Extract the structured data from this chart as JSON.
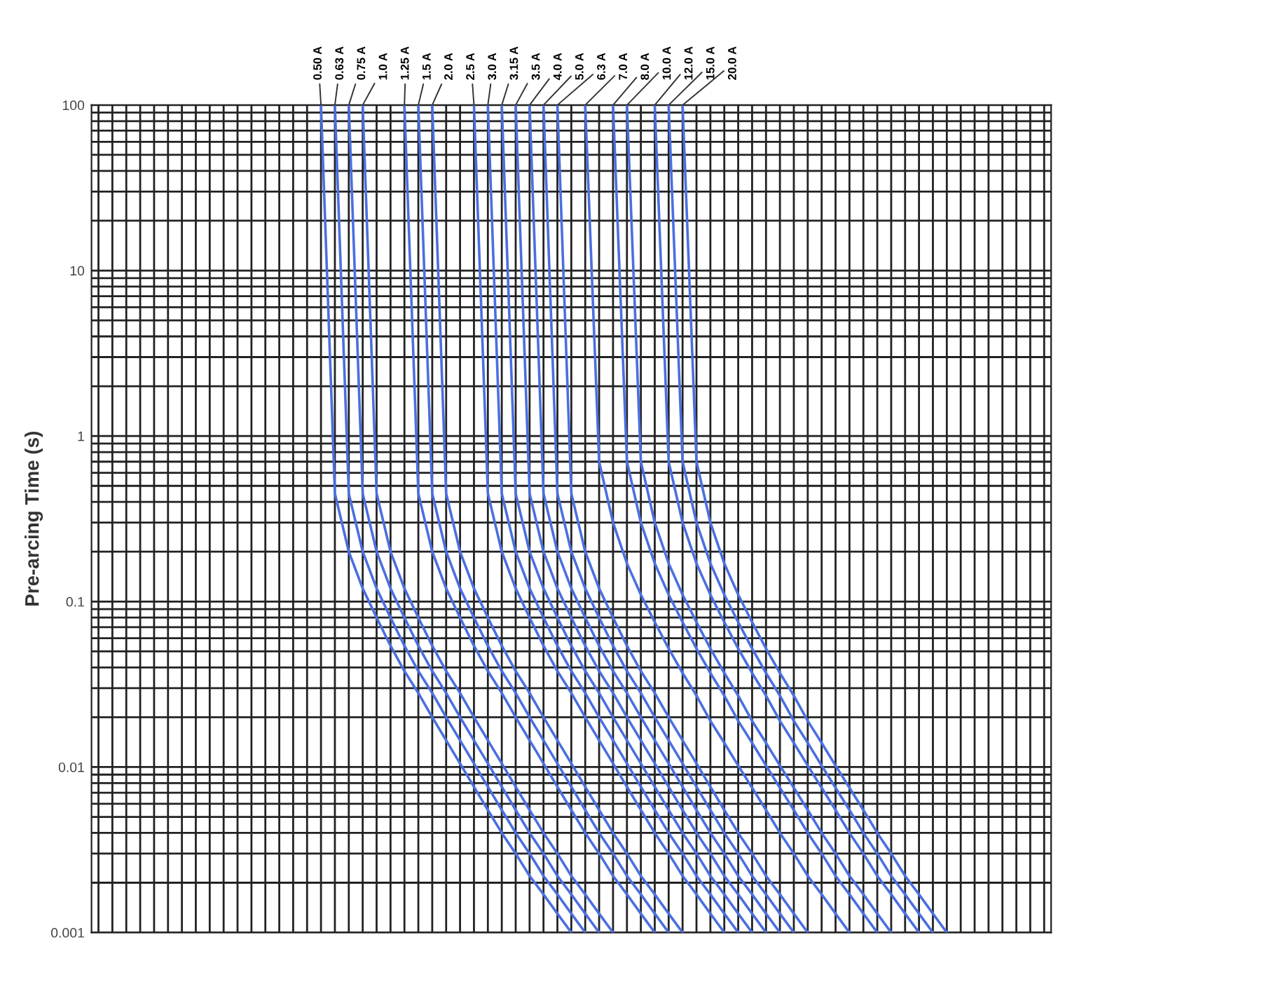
{
  "chart_data": {
    "type": "line",
    "ylabel": "Pre-arcing Time (s)",
    "log": "y",
    "ylim": [
      0.001,
      100
    ],
    "yticks": [
      0.001,
      0.01,
      0.1,
      1,
      10,
      100
    ],
    "grid": true,
    "legend": false,
    "marker": "none",
    "line_style": "solid",
    "categories": [
      null,
      null,
      null,
      null,
      null,
      null,
      null,
      null,
      null,
      null,
      null,
      null,
      null,
      null,
      null,
      null,
      null,
      null,
      null,
      null,
      null,
      null,
      null,
      null,
      null,
      null,
      null,
      null,
      null,
      null,
      null,
      null,
      null,
      null,
      null,
      null,
      null,
      null,
      null,
      null,
      null,
      null,
      null,
      null,
      null,
      null,
      null,
      null,
      null,
      null,
      null,
      null,
      null,
      null,
      null,
      null,
      null,
      null,
      null,
      null,
      null,
      null,
      null,
      null,
      null,
      null,
      null,
      null,
      null
    ],
    "series": [
      {
        "name": "0.50 A",
        "color": "#4a6fe0",
        "values": [
          null,
          null,
          null,
          null,
          null,
          null,
          null,
          null,
          null,
          null,
          null,
          null,
          null,
          null,
          null,
          null,
          100,
          0.45,
          0.2,
          0.12,
          0.08,
          0.054,
          0.038,
          0.028,
          0.02,
          0.0145,
          0.0105,
          0.0076,
          0.0055,
          0.004,
          0.003,
          0.0022,
          0.0017,
          0.0013,
          0.001,
          null,
          null,
          null,
          null,
          null,
          null,
          null,
          null,
          null,
          null,
          null,
          null,
          null,
          null,
          null,
          null,
          null,
          null,
          null,
          null,
          null,
          null,
          null,
          null,
          null,
          null,
          null,
          null,
          null,
          null,
          null,
          null,
          null,
          null
        ]
      },
      {
        "name": "0.63 A",
        "color": "#4a6fe0",
        "values": [
          null,
          null,
          null,
          null,
          null,
          null,
          null,
          null,
          null,
          null,
          null,
          null,
          null,
          null,
          null,
          null,
          null,
          100,
          0.45,
          0.2,
          0.12,
          0.08,
          0.054,
          0.038,
          0.028,
          0.02,
          0.0145,
          0.0105,
          0.0076,
          0.0055,
          0.004,
          0.003,
          0.0022,
          0.0017,
          0.0013,
          0.001,
          null,
          null,
          null,
          null,
          null,
          null,
          null,
          null,
          null,
          null,
          null,
          null,
          null,
          null,
          null,
          null,
          null,
          null,
          null,
          null,
          null,
          null,
          null,
          null,
          null,
          null,
          null,
          null,
          null,
          null,
          null,
          null,
          null
        ]
      },
      {
        "name": "0.75 A",
        "color": "#4a6fe0",
        "values": [
          null,
          null,
          null,
          null,
          null,
          null,
          null,
          null,
          null,
          null,
          null,
          null,
          null,
          null,
          null,
          null,
          null,
          null,
          100,
          0.45,
          0.2,
          0.12,
          0.08,
          0.054,
          0.038,
          0.028,
          0.02,
          0.0145,
          0.0105,
          0.0076,
          0.0055,
          0.004,
          0.003,
          0.0022,
          0.0017,
          0.0013,
          0.001,
          null,
          null,
          null,
          null,
          null,
          null,
          null,
          null,
          null,
          null,
          null,
          null,
          null,
          null,
          null,
          null,
          null,
          null,
          null,
          null,
          null,
          null,
          null,
          null,
          null,
          null,
          null,
          null,
          null,
          null,
          null,
          null
        ]
      },
      {
        "name": "1.0 A",
        "color": "#4a6fe0",
        "values": [
          null,
          null,
          null,
          null,
          null,
          null,
          null,
          null,
          null,
          null,
          null,
          null,
          null,
          null,
          null,
          null,
          null,
          null,
          null,
          100,
          0.45,
          0.2,
          0.12,
          0.08,
          0.054,
          0.038,
          0.028,
          0.02,
          0.0145,
          0.0105,
          0.0076,
          0.0055,
          0.004,
          0.003,
          0.0022,
          0.0017,
          0.0013,
          0.001,
          null,
          null,
          null,
          null,
          null,
          null,
          null,
          null,
          null,
          null,
          null,
          null,
          null,
          null,
          null,
          null,
          null,
          null,
          null,
          null,
          null,
          null,
          null,
          null,
          null,
          null,
          null,
          null,
          null,
          null,
          null
        ]
      },
      {
        "name": "1.25 A",
        "color": "#4a6fe0",
        "values": [
          null,
          null,
          null,
          null,
          null,
          null,
          null,
          null,
          null,
          null,
          null,
          null,
          null,
          null,
          null,
          null,
          null,
          null,
          null,
          null,
          null,
          null,
          100,
          0.45,
          0.2,
          0.12,
          0.08,
          0.054,
          0.038,
          0.028,
          0.02,
          0.0145,
          0.0105,
          0.0076,
          0.0055,
          0.004,
          0.003,
          0.0022,
          0.0017,
          0.0013,
          0.001,
          null,
          null,
          null,
          null,
          null,
          null,
          null,
          null,
          null,
          null,
          null,
          null,
          null,
          null,
          null,
          null,
          null,
          null,
          null,
          null,
          null,
          null,
          null,
          null,
          null,
          null,
          null,
          null
        ]
      },
      {
        "name": "1.5 A",
        "color": "#4a6fe0",
        "values": [
          null,
          null,
          null,
          null,
          null,
          null,
          null,
          null,
          null,
          null,
          null,
          null,
          null,
          null,
          null,
          null,
          null,
          null,
          null,
          null,
          null,
          null,
          null,
          100,
          0.45,
          0.2,
          0.12,
          0.08,
          0.054,
          0.038,
          0.028,
          0.02,
          0.0145,
          0.0105,
          0.0076,
          0.0055,
          0.004,
          0.003,
          0.0022,
          0.0017,
          0.0013,
          0.001,
          null,
          null,
          null,
          null,
          null,
          null,
          null,
          null,
          null,
          null,
          null,
          null,
          null,
          null,
          null,
          null,
          null,
          null,
          null,
          null,
          null,
          null,
          null,
          null,
          null,
          null,
          null
        ]
      },
      {
        "name": "2.0 A",
        "color": "#4a6fe0",
        "values": [
          null,
          null,
          null,
          null,
          null,
          null,
          null,
          null,
          null,
          null,
          null,
          null,
          null,
          null,
          null,
          null,
          null,
          null,
          null,
          null,
          null,
          null,
          null,
          null,
          100,
          0.45,
          0.2,
          0.12,
          0.08,
          0.054,
          0.038,
          0.028,
          0.02,
          0.0145,
          0.0105,
          0.0076,
          0.0055,
          0.004,
          0.003,
          0.0022,
          0.0017,
          0.0013,
          0.001,
          null,
          null,
          null,
          null,
          null,
          null,
          null,
          null,
          null,
          null,
          null,
          null,
          null,
          null,
          null,
          null,
          null,
          null,
          null,
          null,
          null,
          null,
          null,
          null,
          null,
          null
        ]
      },
      {
        "name": "2.5 A",
        "color": "#4a6fe0",
        "values": [
          null,
          null,
          null,
          null,
          null,
          null,
          null,
          null,
          null,
          null,
          null,
          null,
          null,
          null,
          null,
          null,
          null,
          null,
          null,
          null,
          null,
          null,
          null,
          null,
          null,
          null,
          null,
          100,
          0.45,
          0.2,
          0.12,
          0.08,
          0.054,
          0.038,
          0.028,
          0.02,
          0.0145,
          0.0105,
          0.0076,
          0.0055,
          0.004,
          0.003,
          0.0022,
          0.0017,
          0.0013,
          0.001,
          null,
          null,
          null,
          null,
          null,
          null,
          null,
          null,
          null,
          null,
          null,
          null,
          null,
          null,
          null,
          null,
          null,
          null,
          null,
          null,
          null,
          null,
          null
        ]
      },
      {
        "name": "3.0 A",
        "color": "#4a6fe0",
        "values": [
          null,
          null,
          null,
          null,
          null,
          null,
          null,
          null,
          null,
          null,
          null,
          null,
          null,
          null,
          null,
          null,
          null,
          null,
          null,
          null,
          null,
          null,
          null,
          null,
          null,
          null,
          null,
          null,
          100,
          0.45,
          0.2,
          0.12,
          0.08,
          0.054,
          0.038,
          0.028,
          0.02,
          0.0145,
          0.0105,
          0.0076,
          0.0055,
          0.004,
          0.003,
          0.0022,
          0.0017,
          0.0013,
          0.001,
          null,
          null,
          null,
          null,
          null,
          null,
          null,
          null,
          null,
          null,
          null,
          null,
          null,
          null,
          null,
          null,
          null,
          null,
          null,
          null,
          null,
          null
        ]
      },
      {
        "name": "3.15 A",
        "color": "#4a6fe0",
        "values": [
          null,
          null,
          null,
          null,
          null,
          null,
          null,
          null,
          null,
          null,
          null,
          null,
          null,
          null,
          null,
          null,
          null,
          null,
          null,
          null,
          null,
          null,
          null,
          null,
          null,
          null,
          null,
          null,
          null,
          100,
          0.45,
          0.2,
          0.12,
          0.08,
          0.054,
          0.038,
          0.028,
          0.02,
          0.0145,
          0.0105,
          0.0076,
          0.0055,
          0.004,
          0.003,
          0.0022,
          0.0017,
          0.0013,
          0.001,
          null,
          null,
          null,
          null,
          null,
          null,
          null,
          null,
          null,
          null,
          null,
          null,
          null,
          null,
          null,
          null,
          null,
          null,
          null,
          null,
          null
        ]
      },
      {
        "name": "3.5 A",
        "color": "#4a6fe0",
        "values": [
          null,
          null,
          null,
          null,
          null,
          null,
          null,
          null,
          null,
          null,
          null,
          null,
          null,
          null,
          null,
          null,
          null,
          null,
          null,
          null,
          null,
          null,
          null,
          null,
          null,
          null,
          null,
          null,
          null,
          null,
          100,
          0.45,
          0.2,
          0.12,
          0.08,
          0.054,
          0.038,
          0.028,
          0.02,
          0.0145,
          0.0105,
          0.0076,
          0.0055,
          0.004,
          0.003,
          0.0022,
          0.0017,
          0.0013,
          0.001,
          null,
          null,
          null,
          null,
          null,
          null,
          null,
          null,
          null,
          null,
          null,
          null,
          null,
          null,
          null,
          null,
          null,
          null,
          null,
          null
        ]
      },
      {
        "name": "4.0 A",
        "color": "#4a6fe0",
        "values": [
          null,
          null,
          null,
          null,
          null,
          null,
          null,
          null,
          null,
          null,
          null,
          null,
          null,
          null,
          null,
          null,
          null,
          null,
          null,
          null,
          null,
          null,
          null,
          null,
          null,
          null,
          null,
          null,
          null,
          null,
          null,
          100,
          0.45,
          0.2,
          0.12,
          0.08,
          0.054,
          0.038,
          0.028,
          0.02,
          0.0145,
          0.0105,
          0.0076,
          0.0055,
          0.004,
          0.003,
          0.0022,
          0.0017,
          0.0013,
          0.001,
          null,
          null,
          null,
          null,
          null,
          null,
          null,
          null,
          null,
          null,
          null,
          null,
          null,
          null,
          null,
          null,
          null,
          null,
          null
        ]
      },
      {
        "name": "5.0 A",
        "color": "#4a6fe0",
        "values": [
          null,
          null,
          null,
          null,
          null,
          null,
          null,
          null,
          null,
          null,
          null,
          null,
          null,
          null,
          null,
          null,
          null,
          null,
          null,
          null,
          null,
          null,
          null,
          null,
          null,
          null,
          null,
          null,
          null,
          null,
          null,
          null,
          100,
          0.45,
          0.2,
          0.12,
          0.08,
          0.054,
          0.038,
          0.028,
          0.02,
          0.0145,
          0.0105,
          0.0076,
          0.0055,
          0.004,
          0.003,
          0.0022,
          0.0017,
          0.0013,
          0.001,
          null,
          null,
          null,
          null,
          null,
          null,
          null,
          null,
          null,
          null,
          null,
          null,
          null,
          null,
          null,
          null,
          null,
          null
        ]
      },
      {
        "name": "6.3 A",
        "color": "#4a6fe0",
        "values": [
          null,
          null,
          null,
          null,
          null,
          null,
          null,
          null,
          null,
          null,
          null,
          null,
          null,
          null,
          null,
          null,
          null,
          null,
          null,
          null,
          null,
          null,
          null,
          null,
          null,
          null,
          null,
          null,
          null,
          null,
          null,
          null,
          null,
          100,
          0.45,
          0.2,
          0.12,
          0.08,
          0.054,
          0.038,
          0.028,
          0.02,
          0.0145,
          0.0105,
          0.0076,
          0.0055,
          0.004,
          0.003,
          0.0022,
          0.0017,
          0.0013,
          0.001,
          null,
          null,
          null,
          null,
          null,
          null,
          null,
          null,
          null,
          null,
          null,
          null,
          null,
          null,
          null,
          null,
          null
        ]
      },
      {
        "name": "7.0 A",
        "color": "#4a6fe0",
        "values": [
          null,
          null,
          null,
          null,
          null,
          null,
          null,
          null,
          null,
          null,
          null,
          null,
          null,
          null,
          null,
          null,
          null,
          null,
          null,
          null,
          null,
          null,
          null,
          null,
          null,
          null,
          null,
          null,
          null,
          null,
          null,
          null,
          null,
          null,
          null,
          100,
          0.7,
          0.3,
          0.17,
          0.11,
          0.075,
          0.052,
          0.037,
          0.027,
          0.019,
          0.014,
          0.0102,
          0.0075,
          0.0055,
          0.004,
          0.003,
          0.0022,
          0.0017,
          0.0013,
          0.001,
          null,
          null,
          null,
          null,
          null,
          null,
          null,
          null,
          null,
          null,
          null,
          null,
          null,
          null
        ]
      },
      {
        "name": "8.0 A",
        "color": "#4a6fe0",
        "values": [
          null,
          null,
          null,
          null,
          null,
          null,
          null,
          null,
          null,
          null,
          null,
          null,
          null,
          null,
          null,
          null,
          null,
          null,
          null,
          null,
          null,
          null,
          null,
          null,
          null,
          null,
          null,
          null,
          null,
          null,
          null,
          null,
          null,
          null,
          null,
          null,
          null,
          100,
          0.7,
          0.3,
          0.17,
          0.11,
          0.075,
          0.052,
          0.037,
          0.027,
          0.019,
          0.014,
          0.0102,
          0.0075,
          0.0055,
          0.004,
          0.003,
          0.0022,
          0.0017,
          0.0013,
          0.001,
          null,
          null,
          null,
          null,
          null,
          null,
          null,
          null,
          null,
          null,
          null,
          null
        ]
      },
      {
        "name": "10.0 A",
        "color": "#4a6fe0",
        "values": [
          null,
          null,
          null,
          null,
          null,
          null,
          null,
          null,
          null,
          null,
          null,
          null,
          null,
          null,
          null,
          null,
          null,
          null,
          null,
          null,
          null,
          null,
          null,
          null,
          null,
          null,
          null,
          null,
          null,
          null,
          null,
          null,
          null,
          null,
          null,
          null,
          null,
          null,
          100,
          0.7,
          0.3,
          0.17,
          0.11,
          0.075,
          0.052,
          0.037,
          0.027,
          0.019,
          0.014,
          0.0102,
          0.0075,
          0.0055,
          0.004,
          0.003,
          0.0022,
          0.0017,
          0.0013,
          0.001,
          null,
          null,
          null,
          null,
          null,
          null,
          null,
          null,
          null,
          null,
          null
        ]
      },
      {
        "name": "12.0 A",
        "color": "#4a6fe0",
        "values": [
          null,
          null,
          null,
          null,
          null,
          null,
          null,
          null,
          null,
          null,
          null,
          null,
          null,
          null,
          null,
          null,
          null,
          null,
          null,
          null,
          null,
          null,
          null,
          null,
          null,
          null,
          null,
          null,
          null,
          null,
          null,
          null,
          null,
          null,
          null,
          null,
          null,
          null,
          null,
          null,
          100,
          0.7,
          0.3,
          0.17,
          0.11,
          0.075,
          0.052,
          0.037,
          0.027,
          0.019,
          0.014,
          0.0102,
          0.0075,
          0.0055,
          0.004,
          0.003,
          0.0022,
          0.0017,
          0.0013,
          0.001,
          null,
          null,
          null,
          null,
          null,
          null,
          null,
          null,
          null
        ]
      },
      {
        "name": "15.0 A",
        "color": "#4a6fe0",
        "values": [
          null,
          null,
          null,
          null,
          null,
          null,
          null,
          null,
          null,
          null,
          null,
          null,
          null,
          null,
          null,
          null,
          null,
          null,
          null,
          null,
          null,
          null,
          null,
          null,
          null,
          null,
          null,
          null,
          null,
          null,
          null,
          null,
          null,
          null,
          null,
          null,
          null,
          null,
          null,
          null,
          null,
          100,
          0.7,
          0.3,
          0.17,
          0.11,
          0.075,
          0.052,
          0.037,
          0.027,
          0.019,
          0.014,
          0.0102,
          0.0075,
          0.0055,
          0.004,
          0.003,
          0.0022,
          0.0017,
          0.0013,
          0.001,
          null,
          null,
          null,
          null,
          null,
          null,
          null,
          null
        ]
      },
      {
        "name": "20.0 A",
        "color": "#4a6fe0",
        "values": [
          null,
          null,
          null,
          null,
          null,
          null,
          null,
          null,
          null,
          null,
          null,
          null,
          null,
          null,
          null,
          null,
          null,
          null,
          null,
          null,
          null,
          null,
          null,
          null,
          null,
          null,
          null,
          null,
          null,
          null,
          null,
          null,
          null,
          null,
          null,
          null,
          null,
          null,
          null,
          null,
          null,
          null,
          100,
          0.7,
          0.3,
          0.17,
          0.11,
          0.075,
          0.052,
          0.037,
          0.027,
          0.019,
          0.014,
          0.0102,
          0.0075,
          0.0055,
          0.004,
          0.003,
          0.0022,
          0.0017,
          0.0013,
          0.001,
          null,
          null,
          null,
          null,
          null,
          null,
          null
        ]
      }
    ]
  }
}
